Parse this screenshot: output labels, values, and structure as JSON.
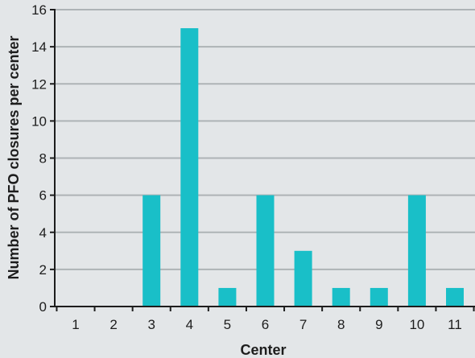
{
  "chart_data": {
    "type": "bar",
    "title": "",
    "xlabel": "Center",
    "ylabel": "Number of PFO closures per center",
    "categories": [
      "1",
      "2",
      "3",
      "4",
      "5",
      "6",
      "7",
      "8",
      "9",
      "10",
      "11"
    ],
    "values": [
      0,
      0,
      6,
      15,
      1,
      6,
      3,
      1,
      1,
      6,
      1
    ],
    "ylim": [
      0,
      16
    ],
    "yticks": [
      0,
      2,
      4,
      6,
      8,
      10,
      12,
      14,
      16
    ],
    "grid": true,
    "legend": "none",
    "colors": {
      "bar": "#19bfc8",
      "background": "#e3e6e8",
      "gridline": "#aeb3b6",
      "axis": "#1d1d1d"
    }
  }
}
